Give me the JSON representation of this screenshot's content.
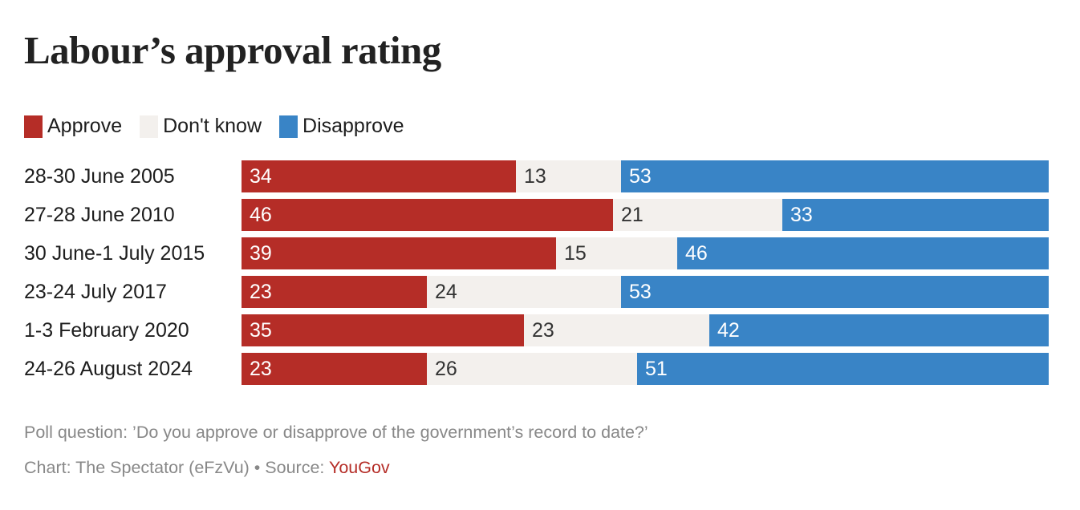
{
  "chart_data": {
    "type": "bar",
    "orientation": "horizontal",
    "stacked": true,
    "title": "Labour’s approval rating",
    "categories": [
      "28-30 June 2005",
      "27-28 June 2010",
      "30 June-1 July 2015",
      "23-24 July 2017",
      "1-3 February 2020",
      "24-26 August 2024"
    ],
    "series": [
      {
        "name": "Approve",
        "color": "#b52d27",
        "label_color": "#ffffff",
        "values": [
          34,
          46,
          39,
          23,
          35,
          23
        ]
      },
      {
        "name": "Don't know",
        "color": "#f3f0ed",
        "label_color": "#333333",
        "values": [
          13,
          21,
          15,
          24,
          23,
          26
        ]
      },
      {
        "name": "Disapprove",
        "color": "#3984c6",
        "label_color": "#ffffff",
        "values": [
          53,
          33,
          46,
          53,
          42,
          51
        ]
      }
    ],
    "xlim": [
      0,
      100
    ],
    "legend": "top-left",
    "grid": false,
    "xlabel": "",
    "ylabel": ""
  },
  "notes": {
    "poll_question": "Poll question: ’Do you approve or disapprove of the government’s record to date?’",
    "credit_prefix": "Chart: The Spectator (eFzVu) • Source: ",
    "source_name": "YouGov"
  }
}
